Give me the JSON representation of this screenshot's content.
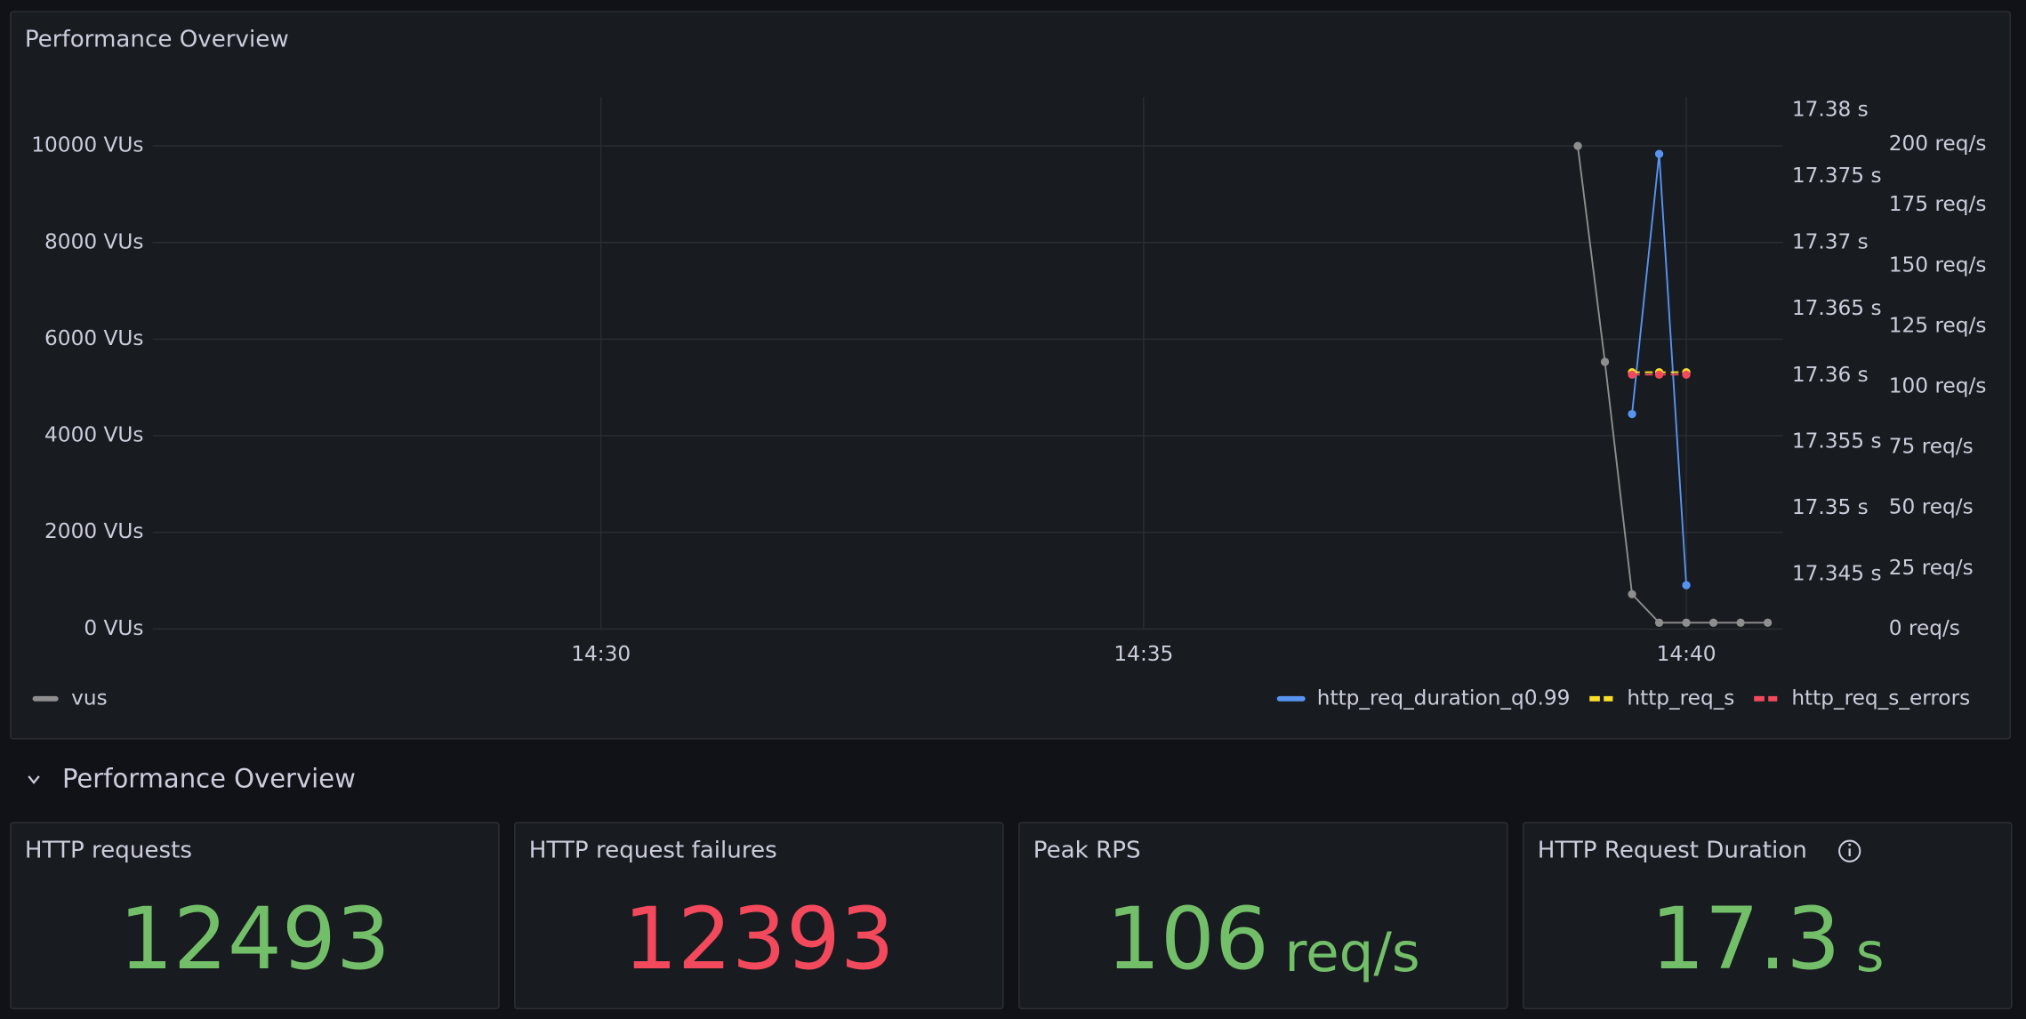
{
  "chart_data": {
    "type": "line",
    "title": "Performance Overview",
    "x": [
      879,
      879.25,
      879.5,
      879.75,
      880,
      880.25,
      880.5,
      880.75
    ],
    "xlim": [
      865.87,
      880.89
    ],
    "xticks": [
      {
        "value": 870,
        "label": "14:30"
      },
      {
        "value": 875,
        "label": "14:35"
      },
      {
        "value": 880,
        "label": "14:40"
      }
    ],
    "ylim": [
      0,
      11016
    ],
    "yticks": [
      {
        "value": 0,
        "label": "0 VUs"
      },
      {
        "value": 2000,
        "label": "2000 VUs"
      },
      {
        "value": 4000,
        "label": "4000 VUs"
      },
      {
        "value": 6000,
        "label": "6000 VUs"
      },
      {
        "value": 8000,
        "label": "8000 VUs"
      },
      {
        "value": 10000,
        "label": "10000 VUs"
      }
    ],
    "y2lim": [
      17.3409,
      17.381
    ],
    "y2ticks": [
      {
        "value": 17.345,
        "label": "17.345 s"
      },
      {
        "value": 17.35,
        "label": "17.35 s"
      },
      {
        "value": 17.355,
        "label": "17.355 s"
      },
      {
        "value": 17.36,
        "label": "17.36 s"
      },
      {
        "value": 17.365,
        "label": "17.365 s"
      },
      {
        "value": 17.37,
        "label": "17.37 s"
      },
      {
        "value": 17.375,
        "label": "17.375 s"
      },
      {
        "value": 17.38,
        "label": "17.38 s"
      }
    ],
    "y3lim": [
      0,
      219.7
    ],
    "y3ticks": [
      {
        "value": 0,
        "label": "0 req/s"
      },
      {
        "value": 25,
        "label": "25 req/s"
      },
      {
        "value": 50,
        "label": "50 req/s"
      },
      {
        "value": 75,
        "label": "75 req/s"
      },
      {
        "value": 100,
        "label": "100 req/s"
      },
      {
        "value": 125,
        "label": "125 req/s"
      },
      {
        "value": 150,
        "label": "150 req/s"
      },
      {
        "value": 175,
        "label": "175 req/s"
      },
      {
        "value": 200,
        "label": "200 req/s"
      }
    ],
    "grid": true,
    "series": [
      {
        "name": "vus",
        "color": "#8e8e8e",
        "axis": "y",
        "values": [
          10000,
          5530,
          720,
          130,
          130,
          130,
          130,
          130
        ]
      },
      {
        "name": "http_req_duration_q0.99",
        "color": "#5794f2",
        "axis": "y2",
        "values": [
          null,
          null,
          17.3571,
          17.3767,
          17.3442,
          null,
          null,
          null
        ]
      },
      {
        "name": "http_req_s",
        "color": "#fade2a",
        "axis": "y3",
        "dashed": true,
        "values": [
          null,
          null,
          106,
          106,
          106,
          null,
          null,
          null
        ]
      },
      {
        "name": "http_req_s_errors",
        "color": "#f2495c",
        "axis": "y3",
        "dashed": true,
        "values": [
          null,
          null,
          105,
          105,
          105,
          null,
          null,
          null
        ]
      }
    ]
  },
  "section": {
    "title": "Performance Overview"
  },
  "stats": [
    {
      "title": "HTTP requests",
      "value": 12493,
      "color": "#73bf69"
    },
    {
      "title": "HTTP request failures",
      "value": 12393,
      "color": "#f2495c"
    },
    {
      "title": "Peak RPS",
      "value": 106,
      "unit": "req/s",
      "color": "#73bf69"
    },
    {
      "title": "HTTP Request Duration",
      "value": 17.3,
      "unit": "s",
      "color": "#73bf69",
      "info": true
    }
  ]
}
